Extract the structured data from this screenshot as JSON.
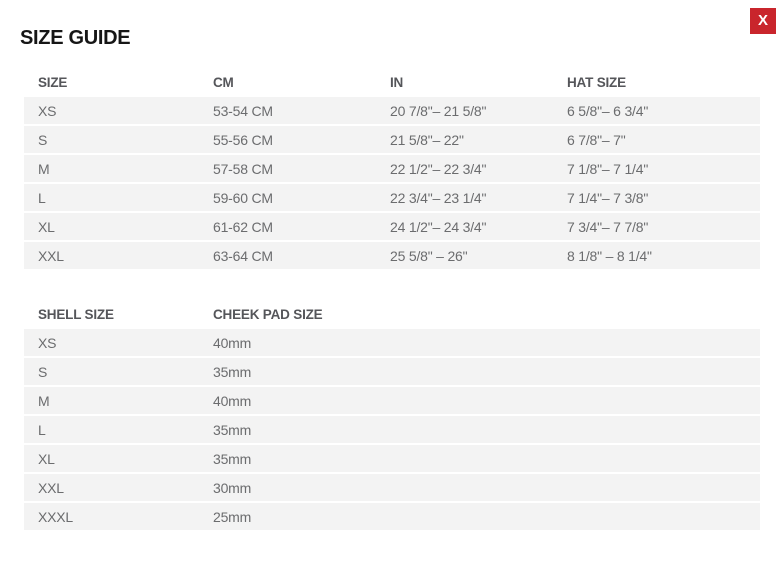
{
  "page": {
    "title": "SIZE GUIDE",
    "close_label": "X"
  },
  "colors": {
    "accent_red": "#c9252c",
    "row_background": "#f3f3f3",
    "header_text": "#55565a",
    "cell_text": "#6b6c6e",
    "title_text": "#161616"
  },
  "size_table": {
    "headers": [
      "SIZE",
      "CM",
      "IN",
      "HAT SIZE"
    ],
    "rows": [
      [
        "XS",
        "53-54 CM",
        "20 7/8\"– 21 5/8\"",
        "6 5/8\"– 6 3/4\""
      ],
      [
        "S",
        "55-56 CM",
        "21 5/8\"– 22\"",
        "6 7/8\"– 7\""
      ],
      [
        "M",
        "57-58 CM",
        "22 1/2\"– 22 3/4\"",
        "7 1/8\"– 7 1/4\""
      ],
      [
        "L",
        "59-60 CM",
        "22 3/4\"– 23 1/4\"",
        "7 1/4\"– 7 3/8\""
      ],
      [
        "XL",
        "61-62 CM",
        "24 1/2\"– 24 3/4\"",
        "7 3/4\"– 7 7/8\""
      ],
      [
        "XXL",
        "63-64 CM",
        "25 5/8\" – 26\"",
        "8 1/8\" – 8 1/4\""
      ]
    ]
  },
  "shell_table": {
    "headers": [
      "SHELL SIZE",
      "CHEEK PAD SIZE"
    ],
    "rows": [
      [
        "XS",
        "40mm"
      ],
      [
        "S",
        "35mm"
      ],
      [
        "M",
        "40mm"
      ],
      [
        "L",
        "35mm"
      ],
      [
        "XL",
        "35mm"
      ],
      [
        "XXL",
        "30mm"
      ],
      [
        "XXXL",
        "25mm"
      ]
    ]
  }
}
